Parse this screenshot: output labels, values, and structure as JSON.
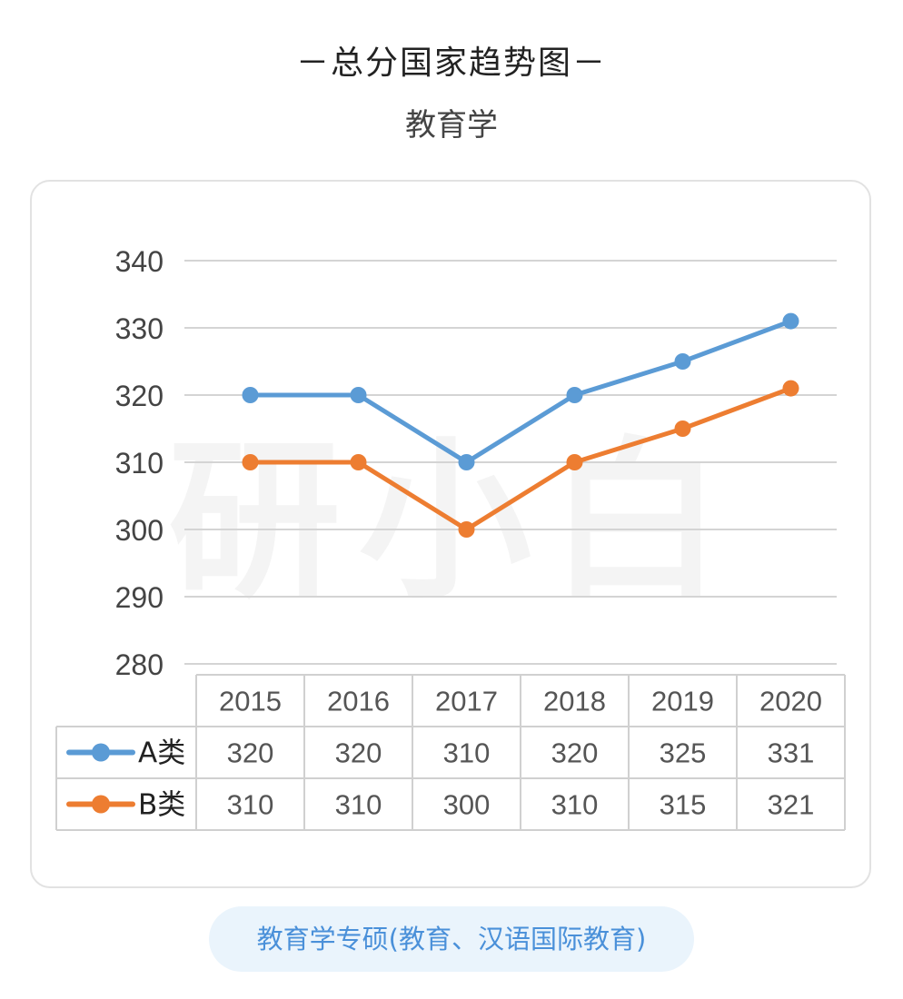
{
  "header": {
    "title": "－总分国家趋势图－",
    "subtitle": "教育学"
  },
  "footer": {
    "label": "教育学专硕(教育、汉语国际教育)"
  },
  "watermark": {
    "text": "研小白"
  },
  "chart_data": {
    "type": "line",
    "categories": [
      "2015",
      "2016",
      "2017",
      "2018",
      "2019",
      "2020"
    ],
    "series": [
      {
        "name": "A类",
        "values": [
          320,
          320,
          310,
          320,
          325,
          331
        ],
        "color": "#5b9bd5"
      },
      {
        "name": "B类",
        "values": [
          310,
          310,
          300,
          310,
          315,
          321
        ],
        "color": "#ed7d31"
      }
    ],
    "yticks": [
      280,
      290,
      300,
      310,
      320,
      330,
      340
    ],
    "ylim": [
      280,
      340
    ],
    "grid": true,
    "data_table": true
  }
}
